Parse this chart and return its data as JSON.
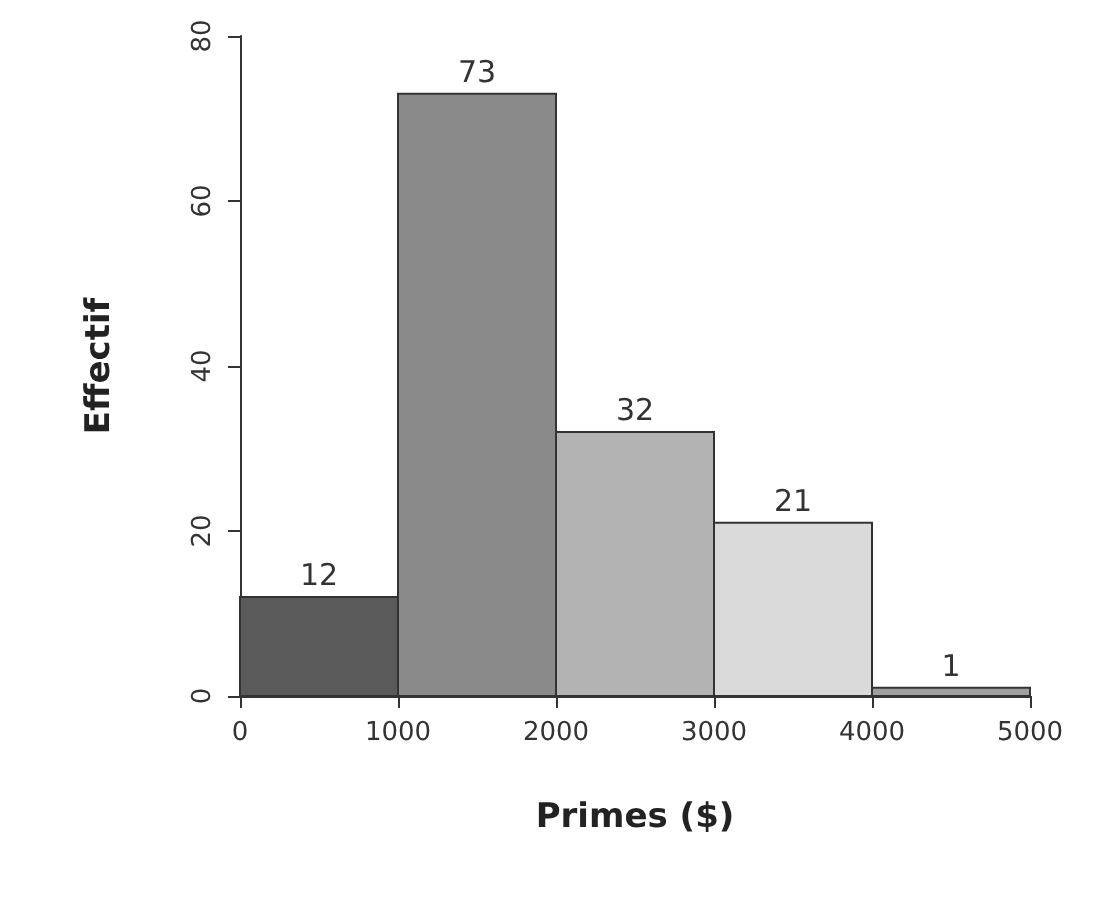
{
  "chart_data": {
    "type": "histogram",
    "xlabel": "Primes ($)",
    "ylabel": "Effectif",
    "bins": [
      0,
      1000,
      2000,
      3000,
      4000,
      5000
    ],
    "values": [
      12,
      73,
      32,
      21,
      1
    ],
    "colors": [
      "#5a5a5a",
      "#8a8a8a",
      "#b3b3b3",
      "#dadada",
      "#a0a0a0"
    ],
    "xlim": [
      0,
      5000
    ],
    "xticks": [
      0,
      1000,
      2000,
      3000,
      4000,
      5000
    ],
    "ylim": [
      0,
      80
    ],
    "yticks": [
      0,
      20,
      40,
      60,
      80
    ],
    "data_labels": true,
    "grid": false
  }
}
